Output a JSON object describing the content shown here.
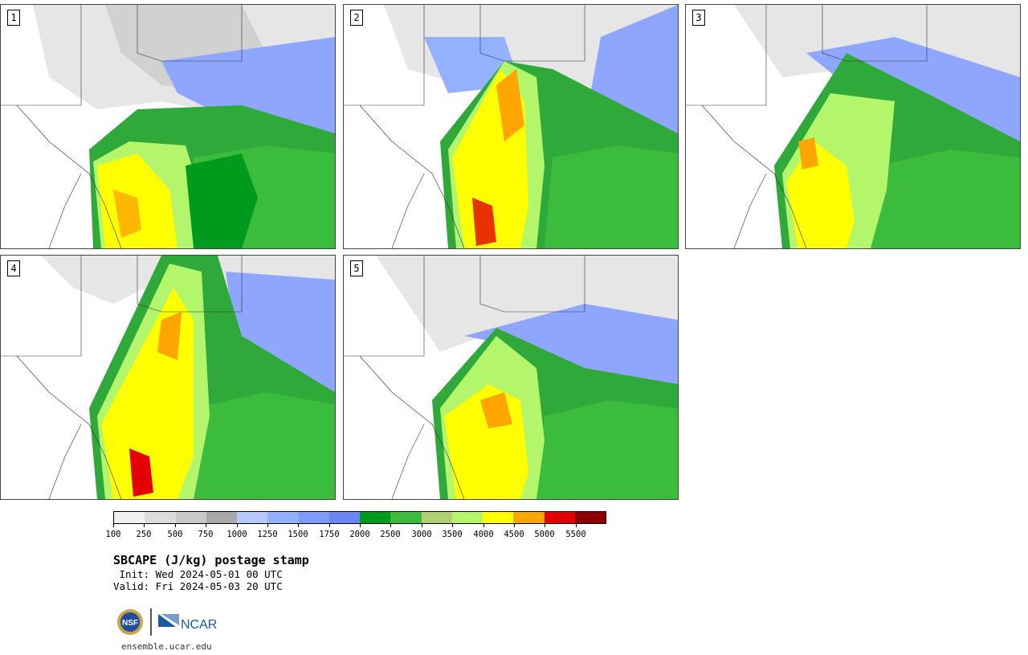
{
  "panels": [
    {
      "label": "1"
    },
    {
      "label": "2"
    },
    {
      "label": "3"
    },
    {
      "label": "4"
    },
    {
      "label": "5"
    }
  ],
  "colorbar": {
    "colors": [
      "#f0f0f0",
      "#dcdcdc",
      "#c8c8c8",
      "#a9a9a9",
      "#b7c8ff",
      "#93b1ff",
      "#7f9bff",
      "#6b86f5",
      "#009a1f",
      "#3cbc3c",
      "#b3cf78",
      "#b3f56b",
      "#ffff00",
      "#ffa500",
      "#e20000",
      "#8b0000"
    ],
    "ticks": [
      "100",
      "250",
      "500",
      "750",
      "1000",
      "1250",
      "1500",
      "1750",
      "2000",
      "2500",
      "3000",
      "3500",
      "4000",
      "4500",
      "5000",
      "5500"
    ]
  },
  "title": "SBCAPE (J/kg) postage stamp",
  "init": " Init: Wed 2024-05-01 00 UTC",
  "valid": "Valid: Fri 2024-05-03 20 UTC",
  "logos": {
    "nsf_text": "NSF",
    "ncar_text": "NCAR"
  },
  "url": "ensemble.ucar.edu"
}
